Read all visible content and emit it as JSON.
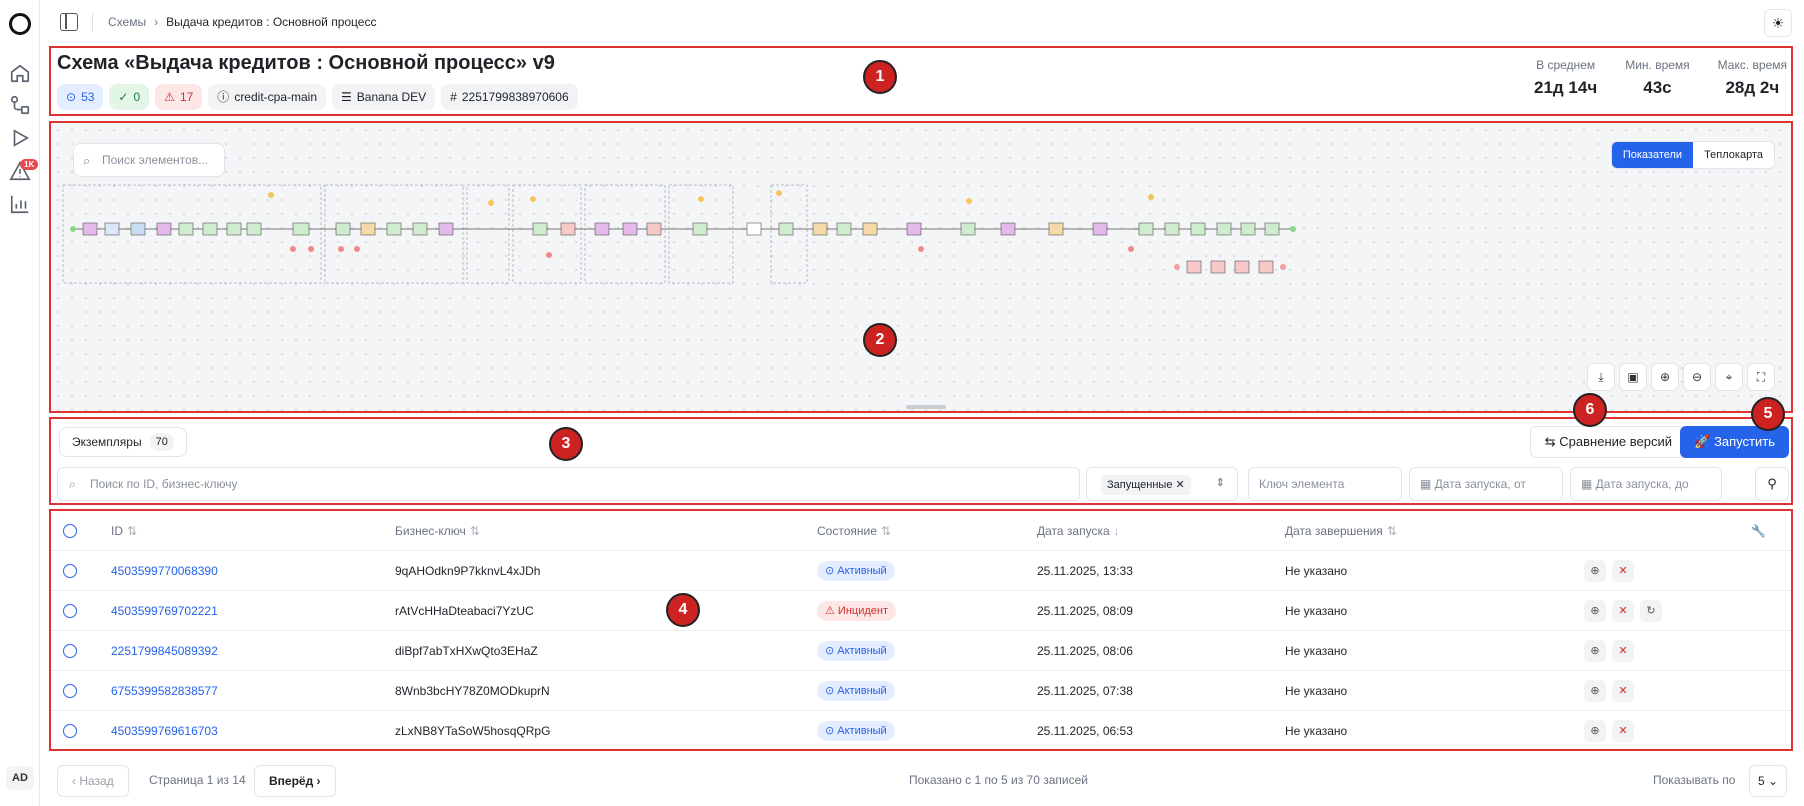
{
  "rail": {
    "avatar": "AD",
    "alerts_badge": "1K"
  },
  "breadcrumbs": {
    "root": "Схемы",
    "current": "Выдача кредитов : Основной процесс"
  },
  "header": {
    "title": "Схема «Выдача кредитов : Основной процесс» v9",
    "chips": {
      "running": "53",
      "completed": "0",
      "incidents": "17",
      "process_key": "credit-cpa-main",
      "env": "Banana DEV",
      "def_id": "2251799838970606"
    },
    "stats": [
      {
        "label": "В среднем",
        "value": "21д 14ч"
      },
      {
        "label": "Мин. время",
        "value": "43с"
      },
      {
        "label": "Макс. время",
        "value": "28д 2ч"
      }
    ]
  },
  "canvas": {
    "search_placeholder": "Поиск элементов...",
    "view_metrics": "Показатели",
    "view_heatmap": "Теплокарта"
  },
  "toolbar": {
    "instances_tab": "Экземпляры",
    "instances_count": "70",
    "compare_label": "Сравнение версий",
    "run_label": "Запустить",
    "search_placeholder": "Поиск по ID, бизнес-ключу",
    "state_filter": "Запущенные",
    "element_key_placeholder": "Ключ элемента",
    "date_from_placeholder": "Дата запуска, от",
    "date_to_placeholder": "Дата запуска, до"
  },
  "table": {
    "columns": {
      "id": "ID",
      "business_key": "Бизнес-ключ",
      "state": "Состояние",
      "start_date": "Дата запуска",
      "end_date": "Дата завершения"
    },
    "rows": [
      {
        "id": "4503599770068390",
        "key": "9qAHOdkn9P7kknvL4xJDh",
        "state": "Активный",
        "start": "25.11.2025, 13:33",
        "end": "Не указано"
      },
      {
        "id": "4503599769702221",
        "key": "rAtVcHHaDteabaci7YzUC",
        "state": "Инцидент",
        "start": "25.11.2025, 08:09",
        "end": "Не указано"
      },
      {
        "id": "2251799845089392",
        "key": "diBpf7abTxHXwQto3EHaZ",
        "state": "Активный",
        "start": "25.11.2025, 08:06",
        "end": "Не указано"
      },
      {
        "id": "6755399582838577",
        "key": "8Wnb3bcHY78Z0MODkuprN",
        "state": "Активный",
        "start": "25.11.2025, 07:38",
        "end": "Не указано"
      },
      {
        "id": "4503599769616703",
        "key": "zLxNB8YTaSoW5hosqQRpG",
        "state": "Активный",
        "start": "25.11.2025, 06:53",
        "end": "Не указано"
      }
    ]
  },
  "footer": {
    "prev": "Назад",
    "page_info": "Страница 1 из 14",
    "next": "Вперёд",
    "shown": "Показано с 1 по 5 из 70 записей",
    "per_page_label": "Показывать по",
    "per_page_value": "5"
  },
  "markers": [
    "1",
    "2",
    "3",
    "4",
    "5",
    "6"
  ]
}
